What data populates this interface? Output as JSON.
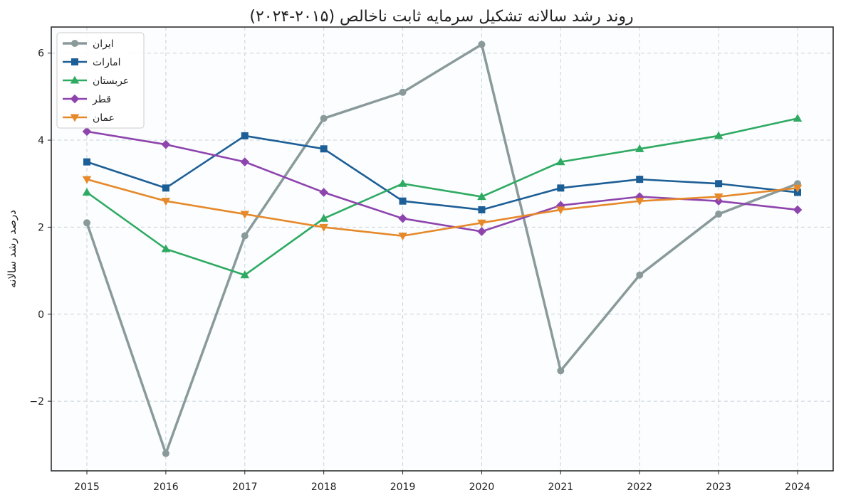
{
  "chart_data": {
    "type": "line",
    "title": "روند رشد سالانه تشکیل سرمایه ثابت ناخالص (۲۰۱۵-۲۰۲۴)",
    "xlabel": "",
    "ylabel": "درصد رشد سالانه",
    "x": [
      2015,
      2016,
      2017,
      2018,
      2019,
      2020,
      2021,
      2022,
      2023,
      2024
    ],
    "x_tick_labels": [
      "2015",
      "2016",
      "2017",
      "2018",
      "2019",
      "2020",
      "2021",
      "2022",
      "2023",
      "2024"
    ],
    "ylim": [
      -3.6,
      6.6
    ],
    "y_ticks": [
      -2,
      0,
      2,
      4,
      6
    ],
    "y_tick_labels": [
      "−2",
      "0",
      "2",
      "4",
      "6"
    ],
    "grid": true,
    "legend_position": "top-left",
    "series": [
      {
        "name": "ایران",
        "color": "#8a9a9b",
        "marker": "circle",
        "values": [
          2.1,
          -3.2,
          1.8,
          4.5,
          5.1,
          6.2,
          -1.3,
          0.9,
          2.3,
          3.0
        ]
      },
      {
        "name": "امارات",
        "color": "#1c5e96",
        "marker": "square",
        "values": [
          3.5,
          2.9,
          4.1,
          3.8,
          2.6,
          2.4,
          2.9,
          3.1,
          3.0,
          2.8
        ]
      },
      {
        "name": "عربستان",
        "color": "#2eaa62",
        "marker": "triangle-up",
        "values": [
          2.8,
          1.5,
          0.9,
          2.2,
          3.0,
          2.7,
          3.5,
          3.8,
          4.1,
          4.5
        ]
      },
      {
        "name": "قطر",
        "color": "#8e44ad",
        "marker": "diamond",
        "values": [
          4.2,
          3.9,
          3.5,
          2.8,
          2.2,
          1.9,
          2.5,
          2.7,
          2.6,
          2.4
        ]
      },
      {
        "name": "عمان",
        "color": "#e6892a",
        "marker": "triangle-down",
        "values": [
          3.1,
          2.6,
          2.3,
          2.0,
          1.8,
          2.1,
          2.4,
          2.6,
          2.7,
          2.9
        ]
      }
    ]
  }
}
